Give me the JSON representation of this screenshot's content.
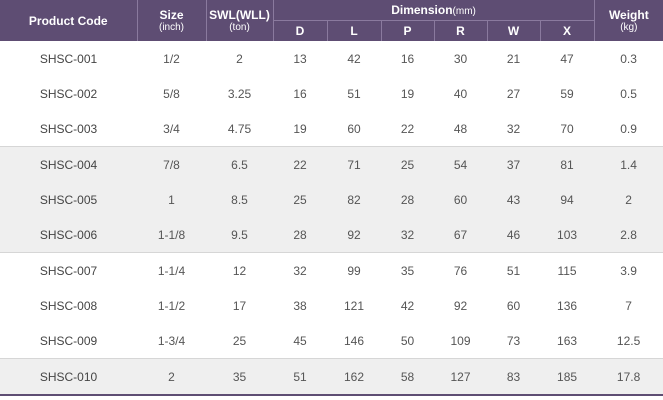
{
  "headers": {
    "product_code": "Product Code",
    "size": "Size",
    "size_unit": "(inch)",
    "swl": "SWL(WLL)",
    "swl_unit": "(ton)",
    "dimension": "Dimension",
    "dimension_unit": "(mm)",
    "weight": "Weight",
    "weight_unit": "(kg)",
    "dim_cols": [
      "D",
      "L",
      "P",
      "R",
      "W",
      "X"
    ]
  },
  "rows": [
    {
      "code": "SHSC-001",
      "size": "1/2",
      "swl": "2",
      "D": "13",
      "L": "42",
      "P": "16",
      "R": "30",
      "W": "21",
      "X": "47",
      "weight": "0.3"
    },
    {
      "code": "SHSC-002",
      "size": "5/8",
      "swl": "3.25",
      "D": "16",
      "L": "51",
      "P": "19",
      "R": "40",
      "W": "27",
      "X": "59",
      "weight": "0.5"
    },
    {
      "code": "SHSC-003",
      "size": "3/4",
      "swl": "4.75",
      "D": "19",
      "L": "60",
      "P": "22",
      "R": "48",
      "W": "32",
      "X": "70",
      "weight": "0.9"
    },
    {
      "code": "SHSC-004",
      "size": "7/8",
      "swl": "6.5",
      "D": "22",
      "L": "71",
      "P": "25",
      "R": "54",
      "W": "37",
      "X": "81",
      "weight": "1.4"
    },
    {
      "code": "SHSC-005",
      "size": "1",
      "swl": "8.5",
      "D": "25",
      "L": "82",
      "P": "28",
      "R": "60",
      "W": "43",
      "X": "94",
      "weight": "2"
    },
    {
      "code": "SHSC-006",
      "size": "1-1/8",
      "swl": "9.5",
      "D": "28",
      "L": "92",
      "P": "32",
      "R": "67",
      "W": "46",
      "X": "103",
      "weight": "2.8"
    },
    {
      "code": "SHSC-007",
      "size": "1-1/4",
      "swl": "12",
      "D": "32",
      "L": "99",
      "P": "35",
      "R": "76",
      "W": "51",
      "X": "115",
      "weight": "3.9"
    },
    {
      "code": "SHSC-008",
      "size": "1-1/2",
      "swl": "17",
      "D": "38",
      "L": "121",
      "P": "42",
      "R": "92",
      "W": "60",
      "X": "136",
      "weight": "7"
    },
    {
      "code": "SHSC-009",
      "size": "1-3/4",
      "swl": "25",
      "D": "45",
      "L": "146",
      "P": "50",
      "R": "109",
      "W": "73",
      "X": "163",
      "weight": "12.5"
    },
    {
      "code": "SHSC-010",
      "size": "2",
      "swl": "35",
      "D": "51",
      "L": "162",
      "P": "58",
      "R": "127",
      "W": "83",
      "X": "185",
      "weight": "17.8"
    }
  ],
  "colors": {
    "header_bg": "#5e4d73",
    "header_text": "#ffffff",
    "band_gray": "#efefef",
    "body_text": "#555555"
  }
}
